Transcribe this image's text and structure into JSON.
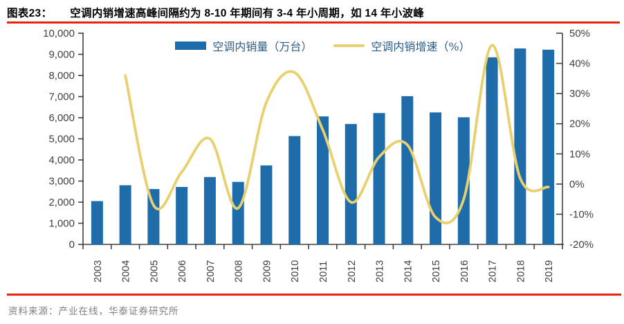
{
  "title": {
    "prefix": "图表23：",
    "text": "空调内销增速高峰间隔约为 8-10 年期间有 3-4 年小周期，如 14 年小波峰"
  },
  "source": "资料来源：产业在线，华泰证券研究所",
  "colors": {
    "bar_fill": "#1E6CA9",
    "line_stroke": "#E8D06E",
    "accent_rule": "#E8230D",
    "legend_text": "#2B5A87",
    "axis_text": "#3F3F3F",
    "source_text": "#7F7F7F",
    "title_text": "#000000"
  },
  "chart_data": {
    "type": "bar+line",
    "title": "空调内销增速高峰间隔约为 8-10 年期间有 3-4 年小周期，如 14 年小波峰",
    "categories": [
      "2003",
      "2004",
      "2005",
      "2006",
      "2007",
      "2008",
      "2009",
      "2010",
      "2011",
      "2012",
      "2013",
      "2014",
      "2015",
      "2016",
      "2017",
      "2018",
      "2019"
    ],
    "series": [
      {
        "name": "空调内销量（万台）",
        "type": "bar",
        "axis": "left",
        "values": [
          2050,
          2800,
          2620,
          2720,
          3190,
          2960,
          3740,
          5130,
          6060,
          5700,
          6220,
          7020,
          6250,
          6020,
          8860,
          9280,
          9220
        ]
      },
      {
        "name": "空调内销增速（%）",
        "type": "line",
        "axis": "right",
        "smooth": true,
        "values": [
          null,
          36,
          -7,
          4,
          15,
          -8,
          27,
          37,
          18,
          -6,
          9,
          13,
          -11,
          -5,
          46,
          2,
          -1
        ]
      }
    ],
    "left_axis": {
      "min": 0,
      "max": 10000,
      "step": 1000,
      "labels": [
        "0",
        "1,000",
        "2,000",
        "3,000",
        "4,000",
        "5,000",
        "6,000",
        "7,000",
        "8,000",
        "9,000",
        "10,000"
      ]
    },
    "right_axis": {
      "min": -20,
      "max": 50,
      "step": 10,
      "labels": [
        "-20%",
        "-10%",
        "0%",
        "10%",
        "20%",
        "30%",
        "40%",
        "50%"
      ]
    },
    "x_axis": {
      "label_rotation": -90
    },
    "grid": false,
    "legend_position": "top-center"
  }
}
